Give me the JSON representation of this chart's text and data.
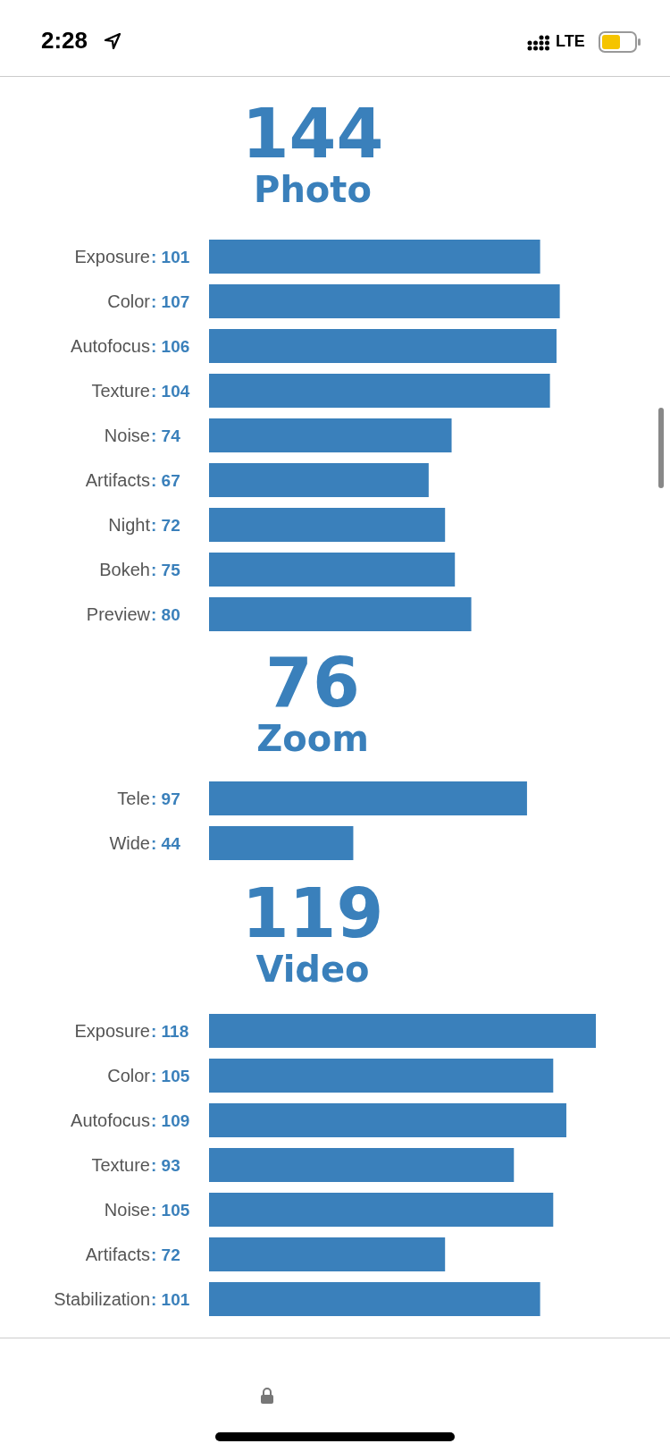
{
  "chart_data": [
    {
      "type": "bar",
      "orientation": "horizontal",
      "title": "144",
      "subtitle": "Photo",
      "categories": [
        "Exposure",
        "Color",
        "Autofocus",
        "Texture",
        "Noise",
        "Artifacts",
        "Night",
        "Bokeh",
        "Preview"
      ],
      "values": [
        101,
        107,
        106,
        104,
        74,
        67,
        72,
        75,
        80
      ],
      "value_labels": [
        ": 101",
        ": 107",
        ": 106",
        ": 104",
        ": 74",
        ": 67",
        ": 72",
        ": 75",
        ": 80"
      ],
      "color": "#3a80bb",
      "annotations": [
        "2:28",
        "LTE"
      ]
    },
    {
      "type": "bar",
      "orientation": "horizontal",
      "title": "76",
      "subtitle": "Zoom",
      "categories": [
        "Tele",
        "Wide"
      ],
      "values": [
        97,
        44
      ],
      "value_labels": [
        ": 97",
        ": 44"
      ],
      "color": "#3a80bb"
    },
    {
      "type": "bar",
      "orientation": "horizontal",
      "title": "119",
      "subtitle": "Video",
      "categories": [
        "Exposure",
        "Color",
        "Autofocus",
        "Texture",
        "Noise",
        "Artifacts",
        "Stabilization"
      ],
      "values": [
        118,
        105,
        109,
        93,
        105,
        72,
        101
      ],
      "value_labels": [
        ": 118",
        ": 105",
        ": 109",
        ": 93",
        ": 105",
        ": 72",
        ": 101"
      ],
      "color": "#3a80bb"
    }
  ]
}
